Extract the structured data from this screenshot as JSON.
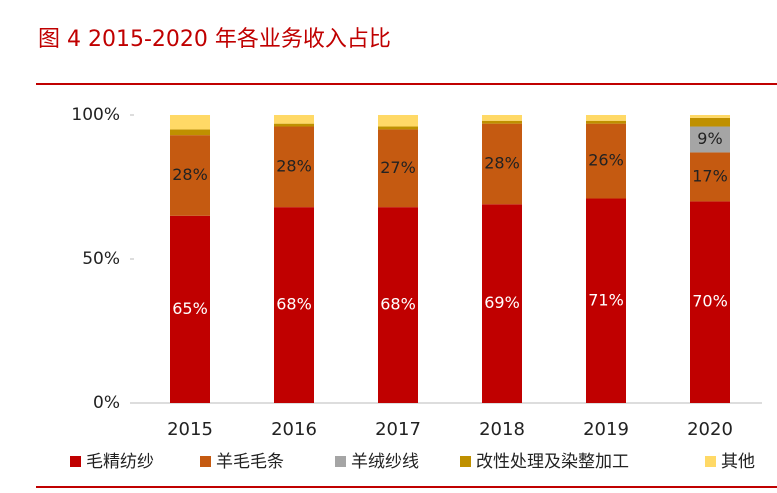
{
  "chart_data": {
    "type": "stacked-bar",
    "title": "图 4   2015-2020 年各业务收入占比",
    "categories": [
      "2015",
      "2016",
      "2017",
      "2018",
      "2019",
      "2020"
    ],
    "series": [
      {
        "name": "毛精纺纱",
        "color": "#c00000",
        "values": [
          65,
          68,
          68,
          69,
          71,
          70
        ],
        "value_labels": [
          "65%",
          "68%",
          "68%",
          "69%",
          "71%",
          "70%"
        ]
      },
      {
        "name": "羊毛毛条",
        "color": "#c55a11",
        "values": [
          28,
          28,
          27,
          28,
          26,
          17
        ],
        "value_labels": [
          "28%",
          "28%",
          "27%",
          "28%",
          "26%",
          "17%"
        ]
      },
      {
        "name": "羊绒纱线",
        "color": "#a5a5a5",
        "values": [
          0,
          0,
          0,
          0,
          0,
          9
        ],
        "value_labels": [
          null,
          null,
          null,
          null,
          null,
          "9%"
        ]
      },
      {
        "name": "改性处理及染整加工",
        "color": "#bf9000",
        "values": [
          2,
          1,
          1,
          1,
          1,
          3
        ]
      },
      {
        "name": "其他",
        "color": "#ffd966",
        "values": [
          5,
          3,
          4,
          2,
          2,
          1
        ]
      }
    ],
    "ylim": [
      0,
      100
    ],
    "yticks": [
      {
        "value": 0,
        "label": "0%"
      },
      {
        "value": 50,
        "label": "50%"
      },
      {
        "value": 100,
        "label": "100%"
      }
    ]
  }
}
